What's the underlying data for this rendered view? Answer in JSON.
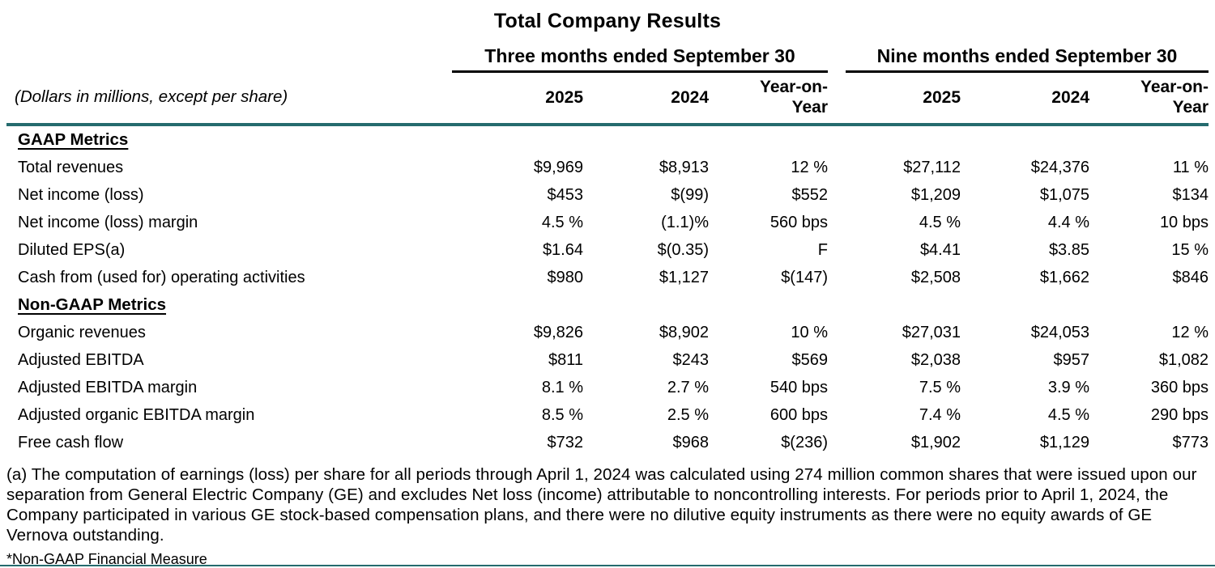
{
  "page": {
    "title": "Total Company Results",
    "units_note": "(Dollars in millions, except per share)"
  },
  "column_groups": [
    {
      "label": "Three months ended September 30"
    },
    {
      "label": "Nine months ended September 30"
    }
  ],
  "columns": {
    "year1": "2025",
    "year2": "2024",
    "yoy": "Year-on-Year"
  },
  "sections": [
    {
      "heading": "GAAP Metrics",
      "rows": [
        {
          "label": "Total revenues",
          "values": [
            "$9,969",
            "$8,913",
            "12 %",
            "$27,112",
            "$24,376",
            "11 %"
          ]
        },
        {
          "label": "Net income (loss)",
          "values": [
            "$453",
            "$(99)",
            "$552",
            "$1,209",
            "$1,075",
            "$134"
          ]
        },
        {
          "label": "Net income (loss) margin",
          "values": [
            "4.5 %",
            "(1.1)%",
            "560 bps",
            "4.5 %",
            "4.4 %",
            "10 bps"
          ]
        },
        {
          "label": "Diluted EPS(a)",
          "values": [
            "$1.64",
            "$(0.35)",
            "F",
            "$4.41",
            "$3.85",
            "15 %"
          ]
        },
        {
          "label": "Cash from (used for) operating activities",
          "values": [
            "$980",
            "$1,127",
            "$(147)",
            "$2,508",
            "$1,662",
            "$846"
          ]
        }
      ]
    },
    {
      "heading": "Non-GAAP Metrics",
      "rows": [
        {
          "label": "Organic revenues",
          "values": [
            "$9,826",
            "$8,902",
            "10 %",
            "$27,031",
            "$24,053",
            "12 %"
          ]
        },
        {
          "label": "Adjusted EBITDA",
          "values": [
            "$811",
            "$243",
            "$569",
            "$2,038",
            "$957",
            "$1,082"
          ]
        },
        {
          "label": "Adjusted EBITDA margin",
          "values": [
            "8.1 %",
            "2.7 %",
            "540 bps",
            "7.5 %",
            "3.9 %",
            "360 bps"
          ]
        },
        {
          "label": "Adjusted organic EBITDA margin",
          "values": [
            "8.5 %",
            "2.5 %",
            "600 bps",
            "7.4 %",
            "4.5 %",
            "290 bps"
          ]
        },
        {
          "label": "Free cash flow",
          "values": [
            "$732",
            "$968",
            "$(236)",
            "$1,902",
            "$1,129",
            "$773"
          ]
        }
      ]
    }
  ],
  "footnotes": {
    "a": "(a) The computation of earnings (loss) per share for all periods through April 1, 2024 was calculated using 274 million common shares that were issued upon our separation from General Electric Company (GE) and excludes Net loss (income) attributable to noncontrolling interests. For periods prior to April 1, 2024, the Company participated in various GE stock-based compensation plans, and there were no dilutive equity instruments as there were no equity awards of GE Vernova outstanding.",
    "non_gaap": "*Non-GAAP Financial Measure"
  },
  "colors": {
    "accent_line": "#256b6e",
    "header_underline": "#000000"
  }
}
